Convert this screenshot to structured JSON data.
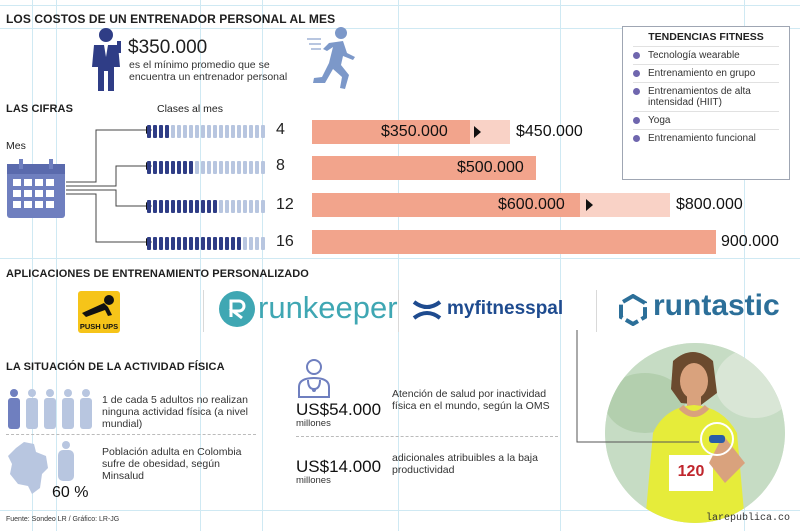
{
  "header": {
    "title": "LOS COSTOS DE UN ENTRENADOR PERSONAL AL MES"
  },
  "price": {
    "amount": "$350.000",
    "description": "es el mínimo promedio que se encuentra un entrenador personal"
  },
  "trends": {
    "title": "TENDENCIAS FITNESS",
    "items": [
      "Tecnología wearable",
      "Entrenamiento en grupo",
      "Entrenamientos de alta intensidad (HIIT)",
      "Yoga",
      "Entrenamiento funcional"
    ],
    "bullet_color": "#6f66ae"
  },
  "figures": {
    "title": "LAS CIFRAS",
    "classes_label": "Clases al mes",
    "month_label": "Mes",
    "rows": [
      {
        "classes": "4",
        "min": "$350.000",
        "max": "$450.000",
        "min_value": 350000,
        "max_value": 450000
      },
      {
        "classes": "8",
        "min": "$500.000",
        "min_value": 500000
      },
      {
        "classes": "12",
        "min": "$600.000",
        "max": "$800.000",
        "min_value": 600000,
        "max_value": 800000
      },
      {
        "classes": "16",
        "min": "900.000",
        "min_value": 900000
      }
    ],
    "bar_colors": {
      "dark": "#f2a48c",
      "light": "#f9d2c6",
      "segment_on": "#2f3d86",
      "segment_off": "#b8c6e0"
    }
  },
  "apps": {
    "title": "APLICACIONES DE ENTRENAMIENTO PERSONALIZADO",
    "items": [
      {
        "name": "PUSH UPS",
        "icon": "push-ups-app-icon"
      },
      {
        "name": "runkeeper",
        "icon": "runkeeper-logo-icon"
      },
      {
        "name": "myfitnesspal",
        "icon": "under-armour-logo-icon"
      },
      {
        "name": "runtastic",
        "icon": "runtastic-logo-icon"
      }
    ]
  },
  "situation": {
    "title": "LA SITUACIÓN DE LA ACTIVIDAD FÍSICA",
    "inactive_text": "1 de cada 5 adultos no realizan ninguna actividad física (a nivel mundial)",
    "obesity_text": "Población adulta en Colombia sufre de obesidad, según Minsalud",
    "obesity_percent": "60 %",
    "cost1": {
      "amount": "US$54.000",
      "unit": "millones",
      "text": "Atención de salud por inactividad física en el mundo, según la OMS"
    },
    "cost2": {
      "amount": "US$14.000",
      "unit": "millones",
      "text": "adicionales atribuibles a la baja productividad"
    }
  },
  "footer": {
    "source": "Fuente: Sondeo LR / Gráfico: LR-JG",
    "watermark": "larepublica.co"
  },
  "runner": {
    "bib": "120"
  }
}
